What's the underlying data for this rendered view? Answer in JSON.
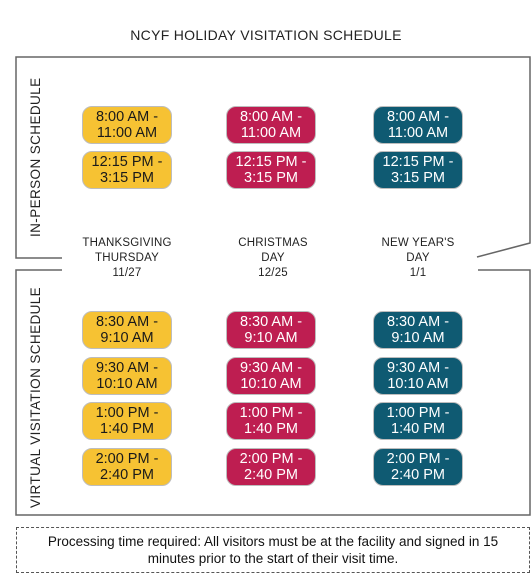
{
  "title": "NCYF HOLIDAY VISITATION SCHEDULE",
  "colors": {
    "thanksgiving": "#f6c233",
    "christmas": "#be1e51",
    "new_year": "#0f5a72"
  },
  "in_person": {
    "label": "IN-PERSON SCHEDULE",
    "thanksgiving": [
      {
        "start": "8:00 AM -",
        "end": "11:00 AM"
      },
      {
        "start": "12:15 PM -",
        "end": "3:15 PM"
      }
    ],
    "christmas": [
      {
        "start": "8:00 AM -",
        "end": "11:00 AM"
      },
      {
        "start": "12:15 PM -",
        "end": "3:15 PM"
      }
    ],
    "new_year": [
      {
        "start": "8:00 AM -",
        "end": "11:00 AM"
      },
      {
        "start": "12:15 PM -",
        "end": "3:15 PM"
      }
    ]
  },
  "days": [
    {
      "line1": "THANKSGIVING",
      "line2": "THURSDAY",
      "date": "11/27"
    },
    {
      "line1": "CHRISTMAS",
      "line2": "DAY",
      "date": "12/25"
    },
    {
      "line1": "NEW YEAR'S",
      "line2": "DAY",
      "date": "1/1"
    }
  ],
  "virtual": {
    "label": "VIRTUAL VISITATION SCHEDULE",
    "thanksgiving": [
      {
        "start": "8:30 AM -",
        "end": "9:10 AM"
      },
      {
        "start": "9:30 AM -",
        "end": "10:10 AM"
      },
      {
        "start": "1:00 PM -",
        "end": "1:40 PM"
      },
      {
        "start": "2:00 PM -",
        "end": "2:40 PM"
      }
    ],
    "christmas": [
      {
        "start": "8:30 AM -",
        "end": "9:10 AM"
      },
      {
        "start": "9:30 AM -",
        "end": "10:10 AM"
      },
      {
        "start": "1:00 PM -",
        "end": "1:40 PM"
      },
      {
        "start": "2:00 PM -",
        "end": "2:40 PM"
      }
    ],
    "new_year": [
      {
        "start": "8:30 AM -",
        "end": "9:10 AM"
      },
      {
        "start": "9:30 AM -",
        "end": "10:10 AM"
      },
      {
        "start": "1:00 PM -",
        "end": "1:40 PM"
      },
      {
        "start": "2:00 PM -",
        "end": "2:40 PM"
      }
    ]
  },
  "note": "Processing time required: All visitors must be at the facility and signed in 15 minutes prior to the start of their visit time."
}
